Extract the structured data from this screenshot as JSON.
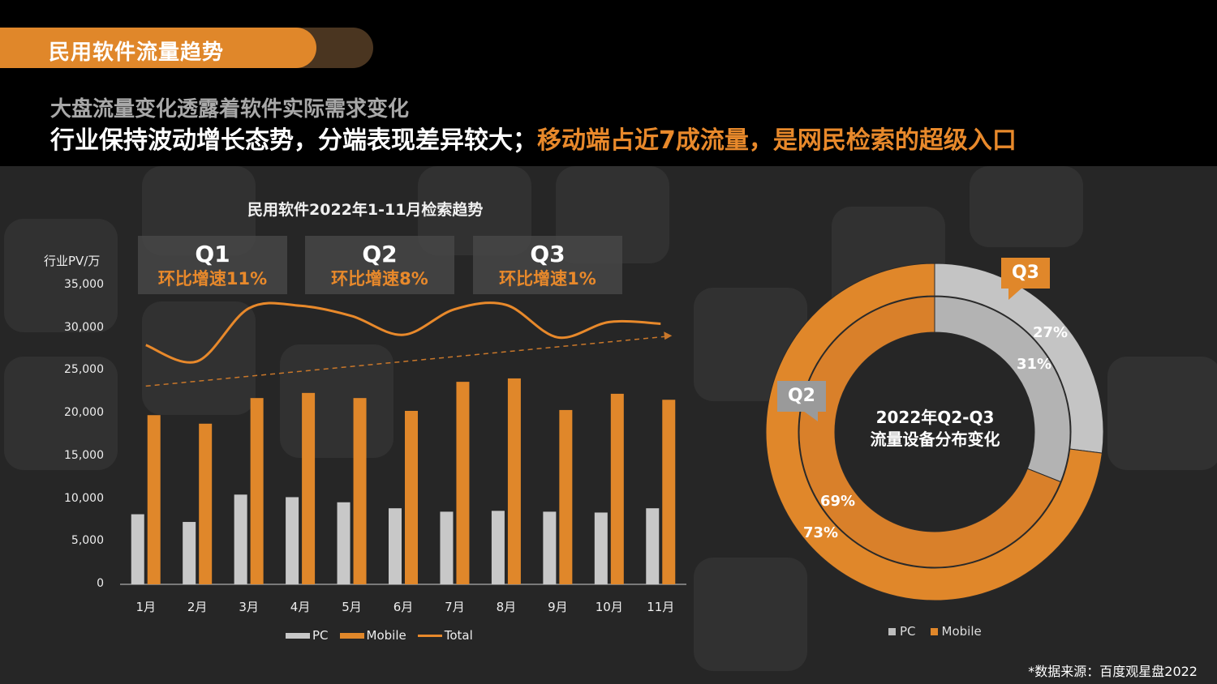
{
  "header": {
    "title": "民用软件流量趋势",
    "subtitle1": "大盘流量变化透露着软件实际需求变化",
    "subtitle2_white": "行业保持波动增长态势，分端表现差异较大；",
    "subtitle2_orange": "移动端占近7成流量，是网民检索的超级入口"
  },
  "colors": {
    "accent": "#e8892b",
    "pc": "#c8c8c8",
    "background": "#262626"
  },
  "quarters": [
    {
      "label": "Q1",
      "growth": "环比增速11%"
    },
    {
      "label": "Q2",
      "growth": "环比增速8%"
    },
    {
      "label": "Q3",
      "growth": "环比增速1%"
    }
  ],
  "donut": {
    "center_line1": "2022年Q2-Q3",
    "center_line2": "流量设备分布变化",
    "outer_tag": "Q3",
    "inner_tag": "Q2",
    "labels": {
      "q3_pc": "27%",
      "q2_pc": "31%",
      "q2_mobile": "69%",
      "q3_mobile": "73%"
    },
    "legend_pc": "PC",
    "legend_mobile": "Mobile"
  },
  "source": "*数据来源：百度观星盘2022",
  "chart_data": [
    {
      "type": "bar",
      "title": "民用软件2022年1-11月检索趋势",
      "ylabel": "行业PV/万",
      "ylim": [
        0,
        35000
      ],
      "yticks": [
        "35,000",
        "30,000",
        "25,000",
        "20,000",
        "15,000",
        "10,000",
        "5,000",
        "0"
      ],
      "categories": [
        "1月",
        "2月",
        "3月",
        "4月",
        "5月",
        "6月",
        "7月",
        "8月",
        "9月",
        "10月",
        "11月"
      ],
      "series": [
        {
          "name": "PC",
          "type": "bar",
          "color": "#c8c8c8",
          "values": [
            8200,
            7300,
            10500,
            10200,
            9600,
            8900,
            8500,
            8600,
            8500,
            8400,
            8900
          ]
        },
        {
          "name": "Mobile",
          "type": "bar",
          "color": "#e0872a",
          "values": [
            19800,
            18800,
            21800,
            22400,
            21800,
            20300,
            23700,
            24100,
            20400,
            22300,
            21600
          ]
        },
        {
          "name": "Total",
          "type": "line",
          "color": "#e8892b",
          "values": [
            28000,
            26100,
            32300,
            32600,
            31400,
            29200,
            32200,
            32700,
            28900,
            30700,
            30500
          ]
        }
      ],
      "trendline": {
        "start": 23200,
        "end": 29000
      }
    },
    {
      "type": "pie",
      "variant": "double-donut",
      "series": [
        {
          "name": "Q3",
          "slices": [
            {
              "label": "PC",
              "value": 27
            },
            {
              "label": "Mobile",
              "value": 73
            }
          ]
        },
        {
          "name": "Q2",
          "slices": [
            {
              "label": "PC",
              "value": 31
            },
            {
              "label": "Mobile",
              "value": 69
            }
          ]
        }
      ]
    }
  ]
}
